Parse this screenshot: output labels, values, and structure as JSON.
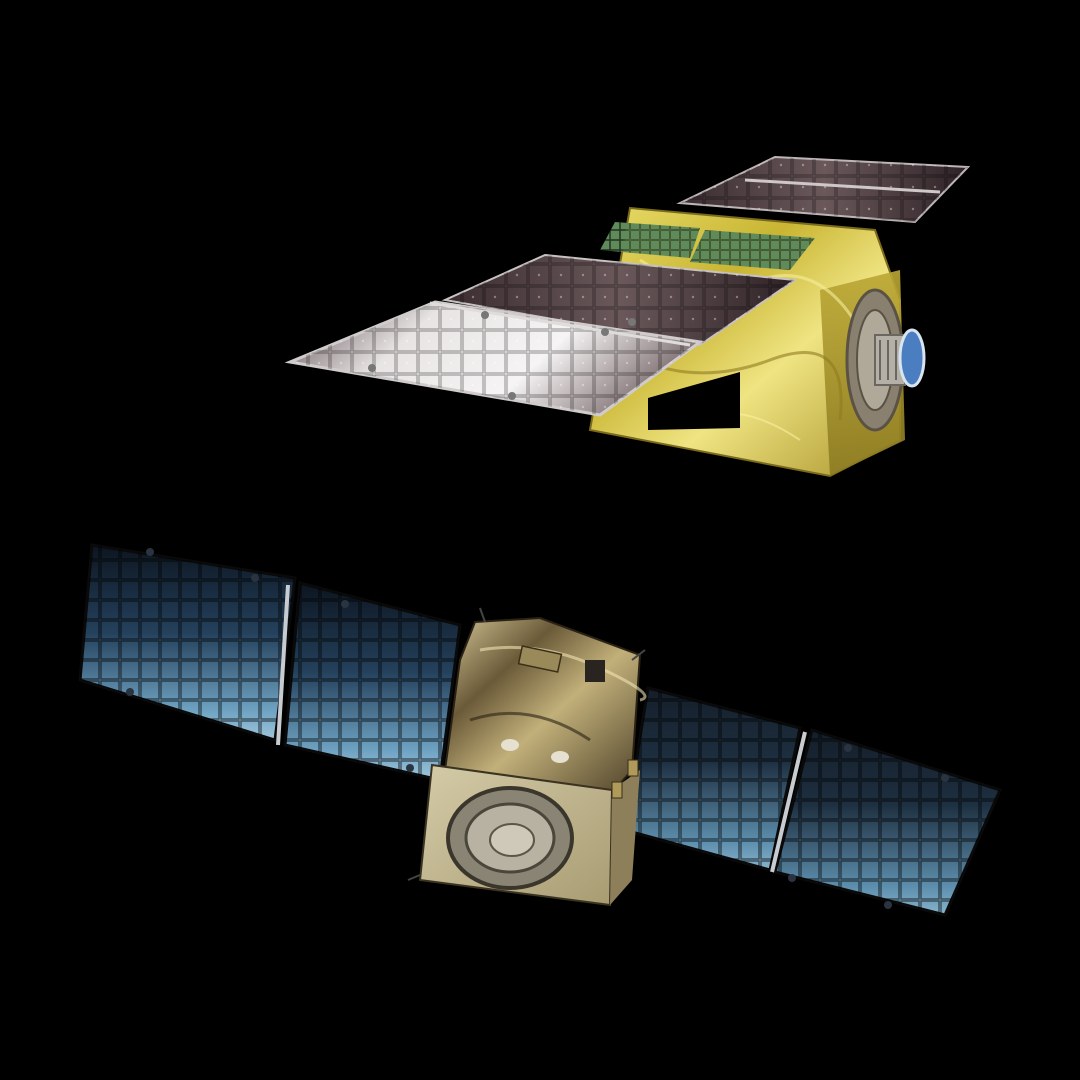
{
  "scene": {
    "background_color": "#000000",
    "subjects": [
      {
        "id": "servicer",
        "icon": "satellite-icon",
        "body_color": "#cdbb3a",
        "panel_color": "#3a2a2e"
      },
      {
        "id": "client",
        "icon": "satellite-icon",
        "body_color": "#8a7a4a",
        "panel_color": "#2a5070"
      }
    ]
  }
}
